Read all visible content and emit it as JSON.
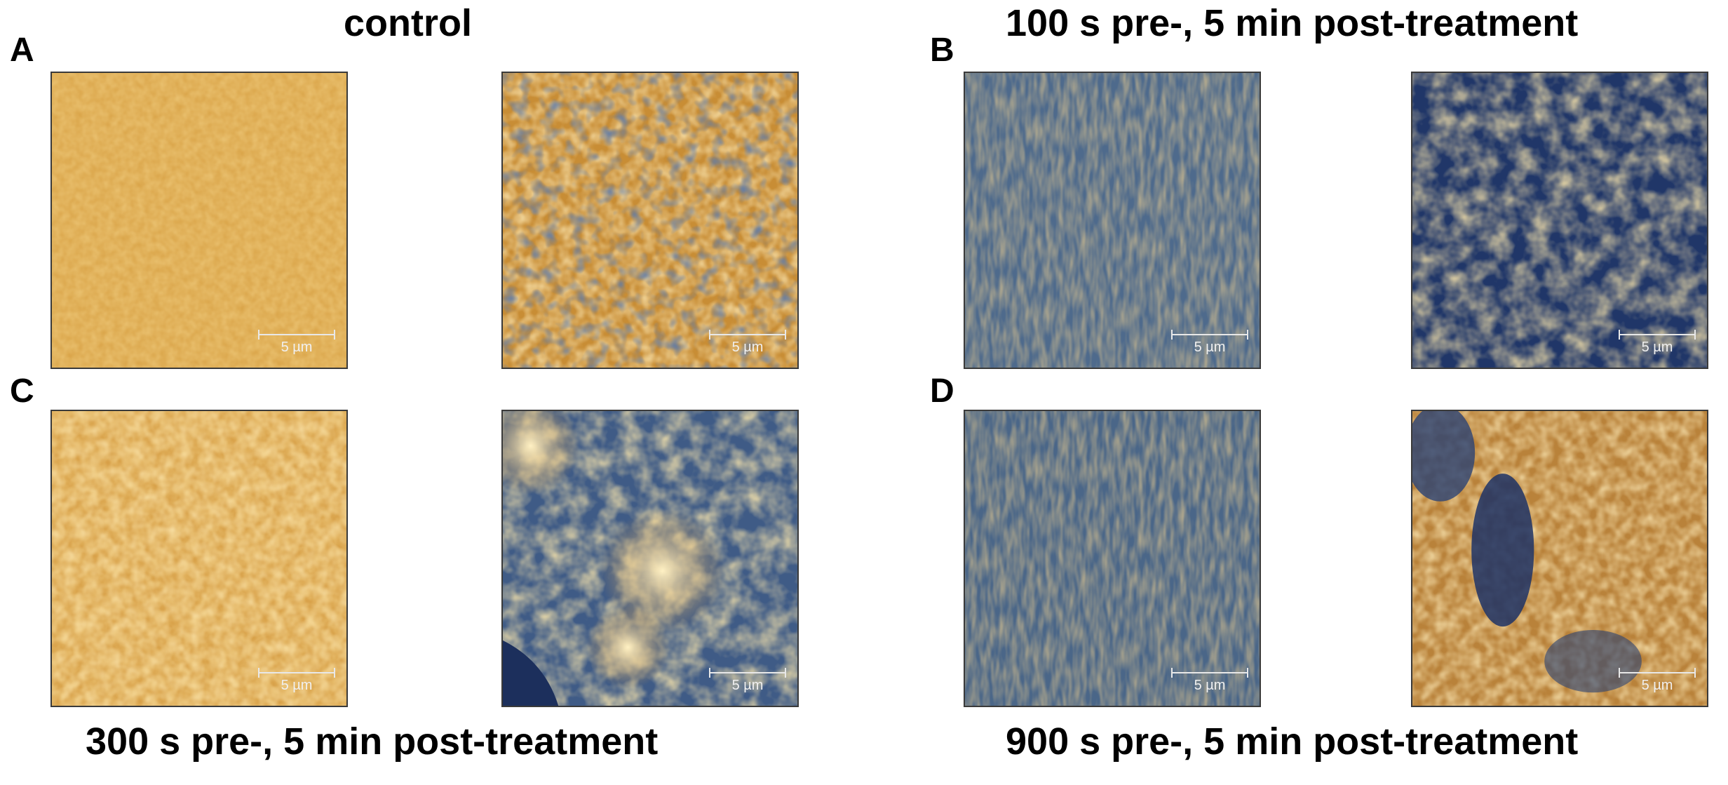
{
  "captions": {
    "top_left": "control",
    "top_right": "100 s pre-, 5 min post-treatment",
    "bottom_left": "300 s pre-, 5 min post-treatment",
    "bottom_right": "900 s pre-, 5 min post-treatment"
  },
  "panels": {
    "A": "A",
    "B": "B",
    "C": "C",
    "D": "D"
  },
  "scale_bar_label": "5 µm",
  "colors": {
    "gold": "#d4a044",
    "bright": "#f6d98a",
    "navy": "#1e3466",
    "slate": "#5a7596"
  }
}
